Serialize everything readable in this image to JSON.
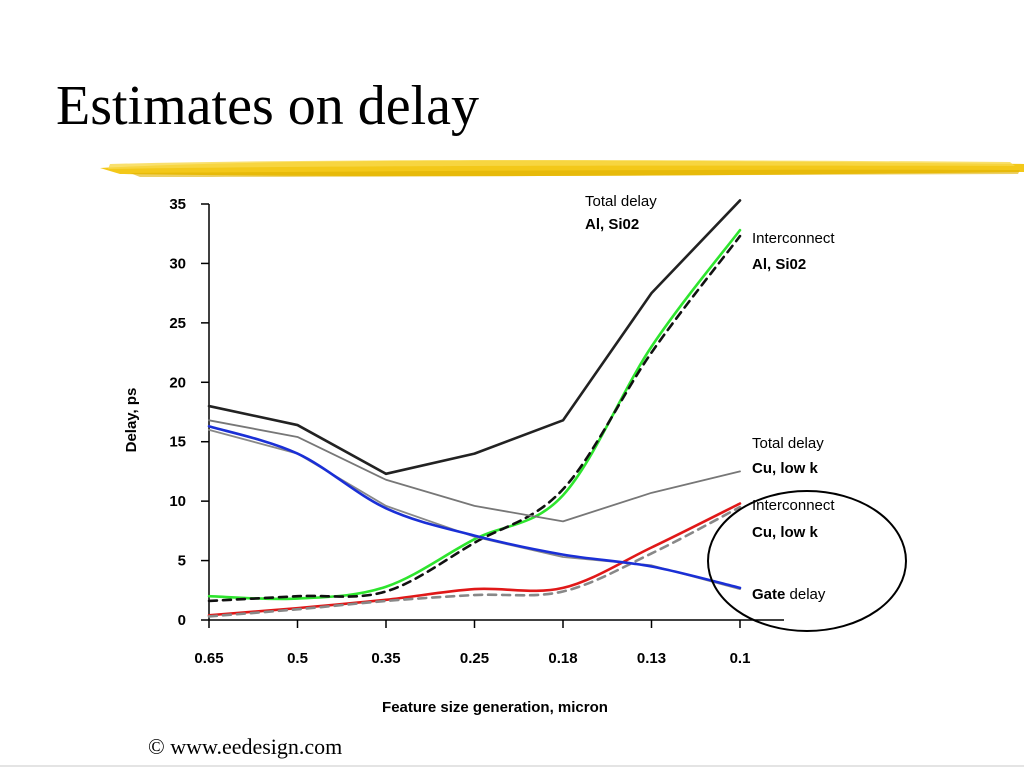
{
  "slide": {
    "title": "Estimates on delay",
    "footer": "© www.eedesign.com",
    "accent_color": "#f2c200"
  },
  "chart_data": {
    "type": "line",
    "xlabel": "Feature size generation, micron",
    "ylabel": "Delay, ps",
    "categories": [
      "0.65",
      "0.5",
      "0.35",
      "0.25",
      "0.18",
      "0.13",
      "0.1"
    ],
    "ylim": [
      0,
      35
    ],
    "yticks": [
      0,
      5,
      10,
      15,
      20,
      25,
      30,
      35
    ],
    "grid": false,
    "series": [
      {
        "name": "Total delay Al, Si02",
        "color": "#222222",
        "dash": false,
        "values": [
          18.0,
          16.4,
          12.3,
          14.0,
          16.8,
          27.5,
          35.3
        ]
      },
      {
        "name": "Interconnect Al, Si02",
        "color": "#2ee52e",
        "dash": false,
        "values": [
          2.0,
          1.8,
          2.8,
          6.8,
          10.5,
          23.0,
          32.8
        ]
      },
      {
        "name": "Interconnect Al, Si02 (dashed)",
        "color": "#111111",
        "dash": true,
        "values": [
          1.6,
          2.0,
          2.4,
          6.5,
          11.0,
          22.5,
          32.3
        ]
      },
      {
        "name": "Total delay Cu, low k",
        "color": "#777777",
        "dash": false,
        "values": [
          16.8,
          15.4,
          11.8,
          9.6,
          8.3,
          10.7,
          12.5
        ]
      },
      {
        "name": "Interconnect Cu, low k",
        "color": "#e01818",
        "dash": false,
        "values": [
          0.4,
          1.0,
          1.7,
          2.6,
          2.7,
          6.1,
          9.8
        ]
      },
      {
        "name": "Interconnect Cu, low k (dashed)",
        "color": "#888888",
        "dash": true,
        "values": [
          0.3,
          0.9,
          1.6,
          2.1,
          2.4,
          5.6,
          9.5
        ]
      },
      {
        "name": "Gate delay (gray)",
        "color": "#888888",
        "dash": false,
        "values": [
          16.0,
          14.0,
          9.6,
          7.0,
          5.3,
          4.6,
          2.6
        ]
      },
      {
        "name": "Gate delay",
        "color": "#1a2fd6",
        "dash": false,
        "values": [
          16.3,
          14.0,
          9.4,
          7.1,
          5.5,
          4.5,
          2.7
        ]
      }
    ],
    "annotations": [
      {
        "line1": "Total delay",
        "line2": "Al, Si02"
      },
      {
        "line1": "Interconnect",
        "line2": "Al, Si02"
      },
      {
        "line1": "Total delay",
        "line2": "Cu, low k"
      },
      {
        "line1": "Interconnect",
        "line2": "Cu, low k"
      },
      {
        "bold": "Gate",
        "rest": " delay"
      }
    ]
  }
}
